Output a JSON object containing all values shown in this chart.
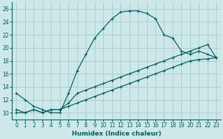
{
  "xlabel": "Humidex (Indice chaleur)",
  "bg_color": "#cde8e8",
  "grid_color": "#aecece",
  "line_color": "#006060",
  "xlim": [
    -0.5,
    23.5
  ],
  "ylim": [
    9,
    27
  ],
  "xticks": [
    0,
    1,
    2,
    3,
    4,
    5,
    6,
    7,
    8,
    9,
    10,
    11,
    12,
    13,
    14,
    15,
    16,
    17,
    18,
    19,
    20,
    21,
    22,
    23
  ],
  "yticks": [
    10,
    12,
    14,
    16,
    18,
    20,
    22,
    24,
    26
  ],
  "curve1_x": [
    0,
    1,
    2,
    3,
    4,
    5,
    6,
    7,
    8,
    9,
    10,
    11,
    12,
    13,
    14,
    15,
    16,
    17,
    18,
    19,
    20,
    21,
    22,
    23
  ],
  "curve1_y": [
    13,
    12,
    11,
    10.5,
    10,
    10,
    13,
    16.5,
    19,
    21.5,
    23,
    24.5,
    25.5,
    25.7,
    25.7,
    25.3,
    24.5,
    22,
    21.5,
    19.5,
    19,
    19.5,
    19,
    18.5
  ],
  "curve2_x": [
    0,
    1,
    2,
    3,
    4,
    5,
    6,
    7,
    8,
    9,
    10,
    11,
    12,
    13,
    14,
    15,
    16,
    17,
    18,
    19,
    20,
    21,
    22,
    23
  ],
  "curve2_y": [
    10.5,
    10,
    10.5,
    10,
    10.5,
    10.5,
    11.5,
    13,
    13.5,
    14,
    14.5,
    15,
    15.5,
    16,
    16.5,
    17,
    17.5,
    18,
    18.5,
    19,
    19.5,
    20,
    20.5,
    18.5
  ],
  "curve3_x": [
    0,
    1,
    2,
    3,
    4,
    5,
    6,
    7,
    8,
    9,
    10,
    11,
    12,
    13,
    14,
    15,
    16,
    17,
    18,
    19,
    20,
    21,
    22,
    23
  ],
  "curve3_y": [
    10,
    10,
    10.5,
    10,
    10.5,
    10.5,
    11,
    11.5,
    12,
    12.5,
    13,
    13.5,
    14,
    14.5,
    15,
    15.5,
    16,
    16.5,
    17,
    17.5,
    18,
    18.2,
    18.3,
    18.5
  ]
}
